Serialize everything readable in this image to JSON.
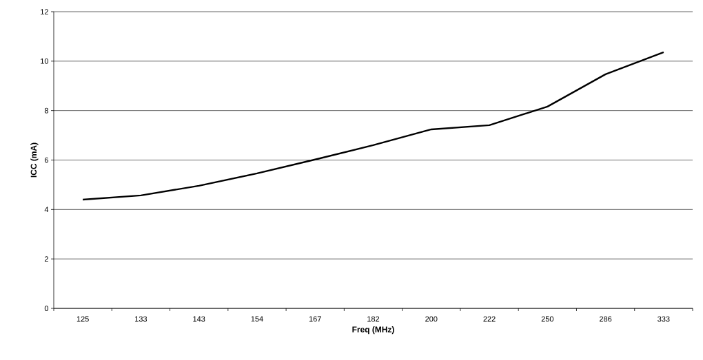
{
  "chart_data": {
    "type": "line",
    "xlabel": "Freq (MHz)",
    "ylabel": "ICC (mA)",
    "categories": [
      "125",
      "133",
      "143",
      "154",
      "167",
      "182",
      "200",
      "222",
      "250",
      "286",
      "333"
    ],
    "series": [
      {
        "color": "#000000",
        "values": [
          4.4,
          4.57,
          4.96,
          5.46,
          6.02,
          6.6,
          7.24,
          7.41,
          8.16,
          9.47,
          10.36
        ]
      }
    ],
    "ylim": [
      0,
      12
    ],
    "yticks": [
      0,
      2,
      4,
      6,
      8,
      10,
      12
    ],
    "grid": "y",
    "marker": "none",
    "line_style": "solid"
  }
}
